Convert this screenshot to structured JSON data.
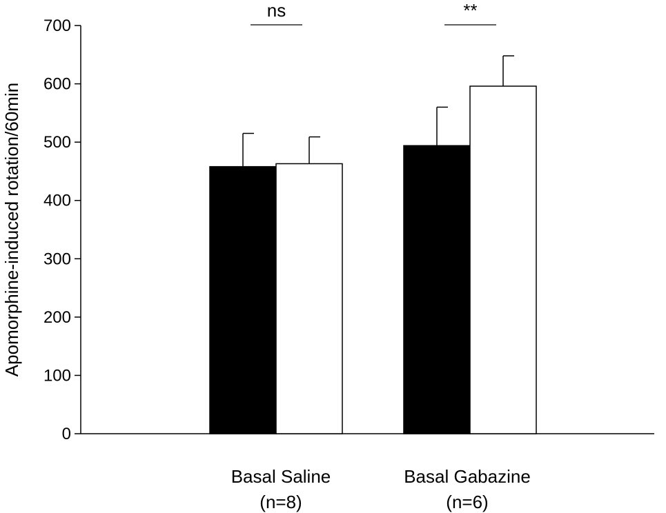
{
  "chart_data": {
    "type": "bar",
    "title": "",
    "xlabel": "",
    "ylabel": "Apomorphine-induced rotation/60min",
    "ylim": [
      0,
      700
    ],
    "yticks": [
      0,
      100,
      200,
      300,
      400,
      500,
      600,
      700
    ],
    "grid": false,
    "legend": "none",
    "categories": [
      {
        "name": "Basal Saline",
        "n_label": "(n=8)"
      },
      {
        "name": "Basal Gabazine",
        "n_label": "(n=6)"
      }
    ],
    "series": [
      {
        "fill": "#000000",
        "values": [
          458,
          494
        ],
        "errors": [
          57,
          66
        ]
      },
      {
        "fill": "#ffffff",
        "values": [
          463,
          596
        ],
        "errors": [
          46,
          52
        ]
      }
    ],
    "annotations": [
      {
        "category_index": 0,
        "text": "ns"
      },
      {
        "category_index": 1,
        "text": "**"
      }
    ]
  }
}
